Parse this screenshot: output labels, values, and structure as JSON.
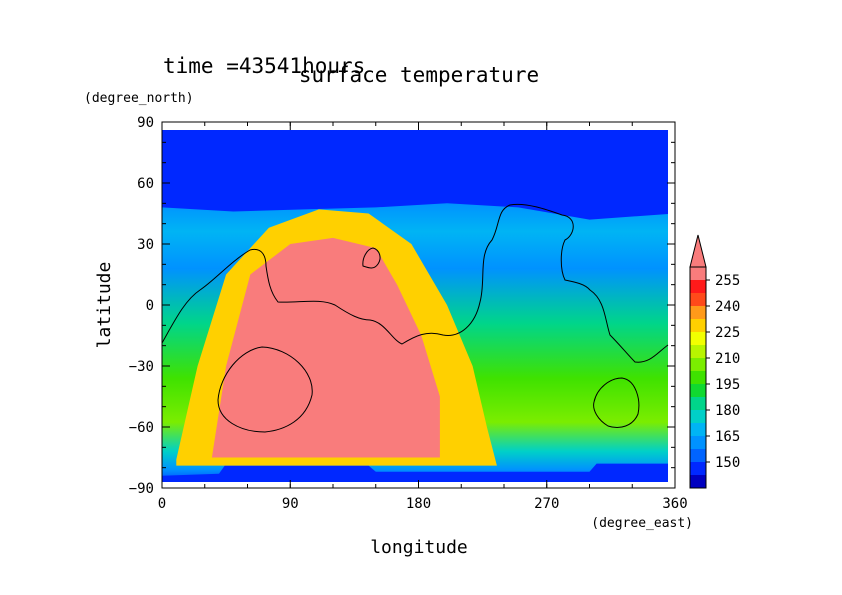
{
  "chart_data": {
    "type": "heatmap",
    "title": "surface temperature",
    "subtitle": "time =43541hours",
    "xlabel": "longitude",
    "ylabel": "latitude",
    "x_unit": "(degree_east)",
    "y_unit": "(degree_north)",
    "xlim": [
      0,
      360
    ],
    "ylim": [
      -90,
      90
    ],
    "x_ticks": [
      "0",
      "90",
      "180",
      "270",
      "360"
    ],
    "y_ticks": [
      "90",
      "60",
      "30",
      "0",
      "−30",
      "−60",
      "−90"
    ],
    "colorbar": {
      "labels": [
        "255",
        "240",
        "225",
        "210",
        "195",
        "180",
        "165",
        "150"
      ],
      "colors": [
        "#f97c7c",
        "#ff1a1a",
        "#ff4a1a",
        "#ff9a1a",
        "#ffd000",
        "#f2ff00",
        "#b8f500",
        "#7bed00",
        "#3fe200",
        "#10d930",
        "#00d58a",
        "#00d0c8",
        "#00b4f4",
        "#0092ff",
        "#0064ff",
        "#0028ff",
        "#0000c0"
      ]
    },
    "regions": [
      {
        "name": "cold-polar-cap",
        "color": "#0028ff",
        "points": [
          [
            0,
            85
          ],
          [
            360,
            85
          ],
          [
            360,
            45
          ],
          [
            300,
            42
          ],
          [
            250,
            48
          ],
          [
            200,
            50
          ],
          [
            150,
            48
          ],
          [
            100,
            47
          ],
          [
            50,
            46
          ],
          [
            0,
            48
          ]
        ]
      },
      {
        "name": "south-ice-cap",
        "color": "#0028ff",
        "points": [
          [
            0,
            -84
          ],
          [
            40,
            -83
          ],
          [
            44,
            -79
          ],
          [
            145,
            -79
          ],
          [
            150,
            -82
          ],
          [
            300,
            -82
          ],
          [
            305,
            -78
          ],
          [
            360,
            -78
          ],
          [
            360,
            -90
          ],
          [
            0,
            -90
          ]
        ]
      },
      {
        "name": "warm-region-edge",
        "color": "#ffd000",
        "points": [
          [
            10,
            -76
          ],
          [
            25,
            -30
          ],
          [
            45,
            15
          ],
          [
            75,
            38
          ],
          [
            110,
            47
          ],
          [
            145,
            45
          ],
          [
            175,
            30
          ],
          [
            200,
            0
          ],
          [
            218,
            -30
          ],
          [
            228,
            -60
          ],
          [
            235,
            -79
          ],
          [
            10,
            -79
          ]
        ]
      },
      {
        "name": "warm-region-core",
        "color": "#f97c7c",
        "points": [
          [
            35,
            -75
          ],
          [
            45,
            -30
          ],
          [
            62,
            15
          ],
          [
            90,
            30
          ],
          [
            120,
            33
          ],
          [
            150,
            28
          ],
          [
            165,
            10
          ],
          [
            182,
            -15
          ],
          [
            195,
            -45
          ],
          [
            195,
            -75
          ]
        ]
      }
    ]
  }
}
